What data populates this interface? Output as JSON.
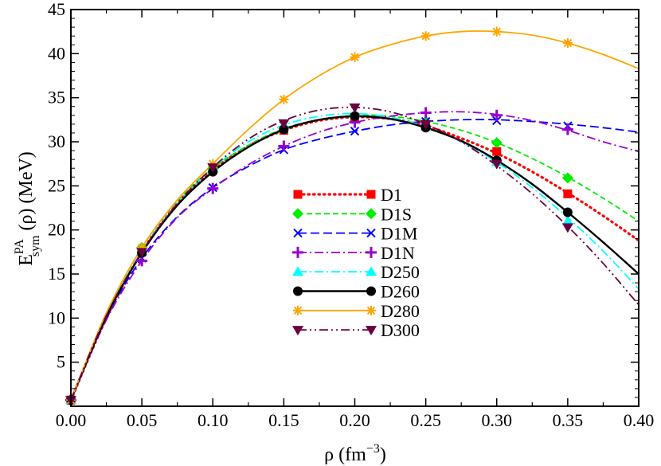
{
  "chart_data": {
    "type": "line",
    "title": "",
    "xlabel": "ρ (fm",
    "xlabel_sup": "−3",
    "xlabel_tail": ")",
    "ylabel_main": "E",
    "ylabel_sup": "PA",
    "ylabel_sub": "sym",
    "ylabel_tail": "(ρ) (MeV)",
    "xlim": [
      0.0,
      0.4
    ],
    "ylim": [
      0,
      45
    ],
    "xticks": [
      "0.00",
      "0.05",
      "0.10",
      "0.15",
      "0.20",
      "0.25",
      "0.30",
      "0.35",
      "0.40"
    ],
    "xtick_values": [
      0.0,
      0.05,
      0.1,
      0.15,
      0.2,
      0.25,
      0.3,
      0.35,
      0.4
    ],
    "yticks": [
      "5",
      "10",
      "15",
      "20",
      "25",
      "30",
      "35",
      "40",
      "45"
    ],
    "ytick_values": [
      5,
      10,
      15,
      20,
      25,
      30,
      35,
      40,
      45
    ],
    "legend_position": "center-left",
    "series": [
      {
        "name": "D1",
        "color": "#ff0000",
        "dash": "1.5,5",
        "marker": "square",
        "width": 3.2,
        "points": [
          [
            0,
            0.7
          ],
          [
            0.025,
            10.0
          ],
          [
            0.05,
            17.5
          ],
          [
            0.075,
            23.0
          ],
          [
            0.1,
            26.8
          ],
          [
            0.125,
            29.5
          ],
          [
            0.15,
            31.3
          ],
          [
            0.175,
            32.4
          ],
          [
            0.2,
            32.8
          ],
          [
            0.225,
            32.6
          ],
          [
            0.25,
            31.8
          ],
          [
            0.275,
            30.4
          ],
          [
            0.3,
            28.7
          ],
          [
            0.325,
            26.6
          ],
          [
            0.35,
            24.2
          ],
          [
            0.375,
            21.6
          ],
          [
            0.4,
            18.8
          ]
        ],
        "markers": [
          [
            0,
            0.7
          ],
          [
            0.05,
            17.5
          ],
          [
            0.1,
            26.8
          ],
          [
            0.15,
            31.3
          ],
          [
            0.2,
            32.8
          ],
          [
            0.25,
            31.8
          ],
          [
            0.3,
            28.9
          ],
          [
            0.35,
            24.1
          ]
        ]
      },
      {
        "name": "D1S",
        "color": "#00ee00",
        "dash": "7,4",
        "marker": "diamond",
        "width": 1.8,
        "points": [
          [
            0,
            0.7
          ],
          [
            0.025,
            10.5
          ],
          [
            0.05,
            18.0
          ],
          [
            0.075,
            23.3
          ],
          [
            0.1,
            27.0
          ],
          [
            0.125,
            29.6
          ],
          [
            0.15,
            31.5
          ],
          [
            0.175,
            32.5
          ],
          [
            0.2,
            33.0
          ],
          [
            0.225,
            32.9
          ],
          [
            0.25,
            32.3
          ],
          [
            0.275,
            31.3
          ],
          [
            0.3,
            29.9
          ],
          [
            0.325,
            28.1
          ],
          [
            0.35,
            26.0
          ],
          [
            0.375,
            23.6
          ],
          [
            0.4,
            21.0
          ]
        ],
        "markers": [
          [
            0,
            0.7
          ],
          [
            0.05,
            18.0
          ],
          [
            0.1,
            27.0
          ],
          [
            0.15,
            31.5
          ],
          [
            0.2,
            33.0
          ],
          [
            0.25,
            32.3
          ],
          [
            0.3,
            29.9
          ],
          [
            0.35,
            25.9
          ]
        ]
      },
      {
        "name": "D1M",
        "color": "#0000ff",
        "dash": "11,5",
        "marker": "x",
        "width": 1.8,
        "points": [
          [
            0,
            0.7
          ],
          [
            0.025,
            10.0
          ],
          [
            0.05,
            16.8
          ],
          [
            0.075,
            21.5
          ],
          [
            0.1,
            24.8
          ],
          [
            0.125,
            27.2
          ],
          [
            0.15,
            29.1
          ],
          [
            0.175,
            30.3
          ],
          [
            0.2,
            31.2
          ],
          [
            0.225,
            31.9
          ],
          [
            0.25,
            32.3
          ],
          [
            0.275,
            32.5
          ],
          [
            0.3,
            32.5
          ],
          [
            0.325,
            32.3
          ],
          [
            0.35,
            32.0
          ],
          [
            0.375,
            31.6
          ],
          [
            0.4,
            31.1
          ]
        ],
        "markers": [
          [
            0,
            0.7
          ],
          [
            0.05,
            16.8
          ],
          [
            0.1,
            24.8
          ],
          [
            0.15,
            29.1
          ],
          [
            0.2,
            31.2
          ],
          [
            0.25,
            32.3
          ],
          [
            0.3,
            32.4
          ],
          [
            0.35,
            31.8
          ]
        ]
      },
      {
        "name": "D1N",
        "color": "#9900cc",
        "dash": "11,4,2,4",
        "marker": "plus",
        "width": 1.8,
        "points": [
          [
            0,
            0.7
          ],
          [
            0.025,
            9.8
          ],
          [
            0.05,
            16.5
          ],
          [
            0.075,
            21.4
          ],
          [
            0.1,
            24.7
          ],
          [
            0.125,
            27.4
          ],
          [
            0.15,
            29.5
          ],
          [
            0.175,
            31.1
          ],
          [
            0.2,
            32.2
          ],
          [
            0.225,
            32.9
          ],
          [
            0.25,
            33.3
          ],
          [
            0.275,
            33.4
          ],
          [
            0.3,
            33.1
          ],
          [
            0.325,
            32.4
          ],
          [
            0.35,
            31.3
          ],
          [
            0.375,
            30.0
          ],
          [
            0.4,
            28.9
          ]
        ],
        "markers": [
          [
            0,
            0.7
          ],
          [
            0.05,
            16.5
          ],
          [
            0.1,
            24.7
          ],
          [
            0.15,
            29.5
          ],
          [
            0.2,
            32.2
          ],
          [
            0.25,
            33.3
          ],
          [
            0.3,
            33.0
          ],
          [
            0.35,
            31.4
          ]
        ]
      },
      {
        "name": "D250",
        "color": "#00ffff",
        "dash": "11,4,2,4",
        "marker": "triangle",
        "width": 1.8,
        "points": [
          [
            0,
            0.7
          ],
          [
            0.025,
            10.3
          ],
          [
            0.05,
            17.6
          ],
          [
            0.075,
            23.0
          ],
          [
            0.1,
            27.0
          ],
          [
            0.125,
            30.0
          ],
          [
            0.15,
            31.9
          ],
          [
            0.175,
            32.9
          ],
          [
            0.2,
            33.2
          ],
          [
            0.225,
            32.8
          ],
          [
            0.25,
            31.7
          ],
          [
            0.275,
            30.0
          ],
          [
            0.3,
            27.7
          ],
          [
            0.325,
            24.8
          ],
          [
            0.35,
            21.4
          ],
          [
            0.375,
            17.6
          ],
          [
            0.4,
            13.3
          ]
        ],
        "markers": [
          [
            0,
            0.7
          ],
          [
            0.05,
            17.6
          ],
          [
            0.1,
            27.0
          ],
          [
            0.15,
            31.9
          ],
          [
            0.2,
            33.2
          ],
          [
            0.25,
            31.7
          ],
          [
            0.3,
            27.7
          ],
          [
            0.35,
            21.0
          ]
        ]
      },
      {
        "name": "D260",
        "color": "#000000",
        "dash": "",
        "marker": "circle",
        "width": 2.4,
        "points": [
          [
            0,
            0.7
          ],
          [
            0.025,
            10.2
          ],
          [
            0.05,
            17.4
          ],
          [
            0.075,
            22.8
          ],
          [
            0.1,
            26.6
          ],
          [
            0.125,
            29.4
          ],
          [
            0.15,
            31.4
          ],
          [
            0.175,
            32.5
          ],
          [
            0.2,
            32.9
          ],
          [
            0.225,
            32.6
          ],
          [
            0.25,
            31.6
          ],
          [
            0.275,
            30.1
          ],
          [
            0.3,
            27.9
          ],
          [
            0.325,
            25.2
          ],
          [
            0.35,
            22.0
          ],
          [
            0.375,
            18.6
          ],
          [
            0.4,
            15.0
          ]
        ],
        "markers": [
          [
            0,
            0.7
          ],
          [
            0.05,
            17.4
          ],
          [
            0.1,
            26.6
          ],
          [
            0.15,
            31.4
          ],
          [
            0.2,
            32.9
          ],
          [
            0.25,
            31.6
          ],
          [
            0.3,
            27.9
          ],
          [
            0.35,
            22.0
          ]
        ]
      },
      {
        "name": "D280",
        "color": "#ffa500",
        "dash": "",
        "marker": "asterisk",
        "width": 1.8,
        "points": [
          [
            0,
            0.7
          ],
          [
            0.025,
            10.6
          ],
          [
            0.05,
            18.0
          ],
          [
            0.075,
            23.4
          ],
          [
            0.1,
            27.5
          ],
          [
            0.125,
            31.4
          ],
          [
            0.15,
            34.8
          ],
          [
            0.175,
            37.5
          ],
          [
            0.2,
            39.6
          ],
          [
            0.225,
            41.0
          ],
          [
            0.25,
            42.0
          ],
          [
            0.275,
            42.5
          ],
          [
            0.3,
            42.5
          ],
          [
            0.325,
            42.1
          ],
          [
            0.35,
            41.2
          ],
          [
            0.375,
            39.9
          ],
          [
            0.4,
            38.3
          ]
        ],
        "markers": [
          [
            0,
            0.7
          ],
          [
            0.05,
            18.0
          ],
          [
            0.1,
            27.5
          ],
          [
            0.15,
            34.8
          ],
          [
            0.2,
            39.6
          ],
          [
            0.25,
            42.0
          ],
          [
            0.3,
            42.5
          ],
          [
            0.35,
            41.2
          ]
        ]
      },
      {
        "name": "D300",
        "color": "#6b0040",
        "dash": "11,4,2,4,2,4",
        "marker": "triangle-down",
        "width": 1.8,
        "points": [
          [
            0,
            0.7
          ],
          [
            0.025,
            10.3
          ],
          [
            0.05,
            17.5
          ],
          [
            0.075,
            23.0
          ],
          [
            0.1,
            27.1
          ],
          [
            0.125,
            30.3
          ],
          [
            0.15,
            32.4
          ],
          [
            0.175,
            33.6
          ],
          [
            0.2,
            33.9
          ],
          [
            0.225,
            33.4
          ],
          [
            0.25,
            32.0
          ],
          [
            0.275,
            30.0
          ],
          [
            0.3,
            27.3
          ],
          [
            0.325,
            24.1
          ],
          [
            0.35,
            20.4
          ],
          [
            0.375,
            16.2
          ],
          [
            0.4,
            11.5
          ]
        ],
        "markers": [
          [
            0,
            0.7
          ],
          [
            0.05,
            17.5
          ],
          [
            0.1,
            27.1
          ],
          [
            0.15,
            32.1
          ],
          [
            0.2,
            33.9
          ],
          [
            0.25,
            32.0
          ],
          [
            0.3,
            27.5
          ],
          [
            0.35,
            20.3
          ]
        ]
      }
    ]
  }
}
